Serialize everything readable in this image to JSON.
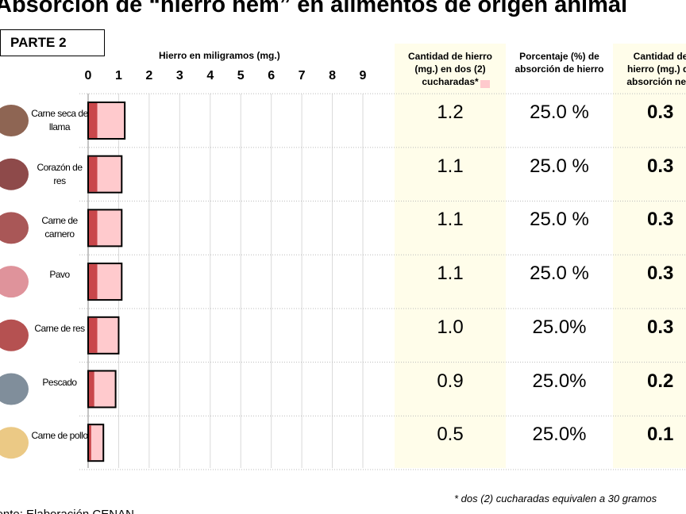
{
  "title": "Absorción de “hierro hem” en alimentos de origen animal",
  "part": "PARTE 2",
  "chart_data": {
    "type": "bar",
    "orientation": "horizontal",
    "xlabel": "Hierro en miligramos  (mg.)",
    "categories": [
      "Carne seca de llama",
      "Corazón de res",
      "Carne de carnero",
      "Pavo",
      "Carne de res",
      "Pescado",
      "Carne de pollo"
    ],
    "xlim": [
      0,
      9
    ],
    "xticks": [
      0,
      1,
      2,
      3,
      4,
      5,
      6,
      7,
      8,
      9
    ],
    "grid": true,
    "series": [
      {
        "color": "#ffcacd",
        "values": [
          1.2,
          1.1,
          1.1,
          1.1,
          1.0,
          0.9,
          0.5
        ]
      },
      {
        "color": "#c9474b",
        "values": [
          0.3,
          0.3,
          0.3,
          0.3,
          0.3,
          0.2,
          0.1
        ]
      }
    ]
  },
  "table": {
    "headers": [
      "Cantidad  de hierro (mg.)  en dos (2) cucharadas*",
      "Porcentaje (%) de absorción  de hierro",
      "Cantidad  de hierro (mg.) de absorción neta"
    ],
    "rows": [
      [
        "1.2",
        "25.0 %",
        "0.3"
      ],
      [
        "1.1",
        "25.0 %",
        "0.3"
      ],
      [
        "1.1",
        "25.0 %",
        "0.3"
      ],
      [
        "1.1",
        "25.0 %",
        "0.3"
      ],
      [
        "1.0",
        "25.0%",
        "0.3"
      ],
      [
        "0.9",
        "25.0%",
        "0.2"
      ],
      [
        "0.5",
        "25.0%",
        "0.1"
      ]
    ]
  },
  "footnote": "* dos (2) cucharadas equivalen a 30 gramos",
  "source": "Fuente: Elaboración CENAN"
}
